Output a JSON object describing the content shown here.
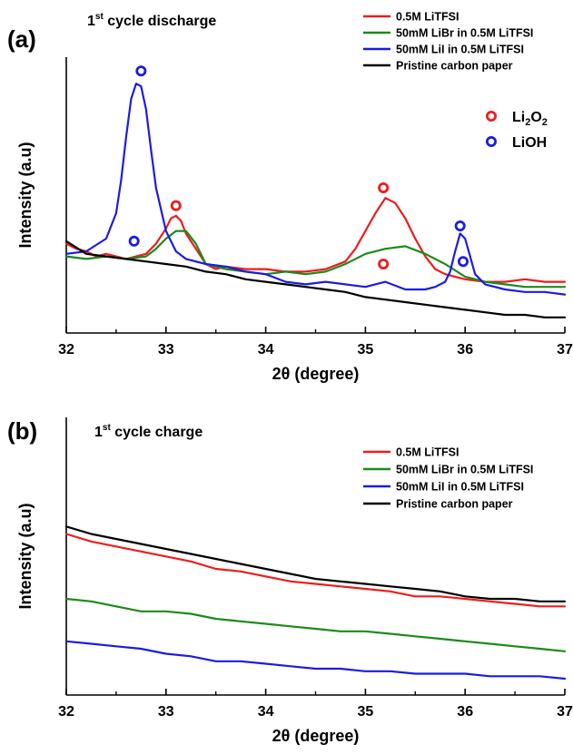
{
  "chart_data": [
    {
      "panel": "(a)",
      "title": "1st cycle discharge",
      "title_main": "1",
      "title_sup": "st",
      "title_rest": " cycle discharge",
      "type": "line",
      "xlabel": "2θ (degree)",
      "ylabel": "Intensity (a.u)",
      "xlim": [
        32,
        37
      ],
      "ylim": [
        0,
        100
      ],
      "xticks": [
        "32",
        "33",
        "34",
        "35",
        "36",
        "37"
      ],
      "legend_position": "top-right",
      "series": [
        {
          "name": "0.5M LiTFSI",
          "color": "#ee1c1c",
          "x": [
            32.0,
            32.1,
            32.2,
            32.3,
            32.4,
            32.5,
            32.6,
            32.7,
            32.8,
            32.9,
            33.0,
            33.05,
            33.1,
            33.15,
            33.2,
            33.3,
            33.4,
            33.5,
            33.6,
            33.8,
            34.0,
            34.2,
            34.4,
            34.6,
            34.8,
            34.9,
            35.0,
            35.1,
            35.2,
            35.3,
            35.4,
            35.5,
            35.6,
            35.7,
            35.8,
            35.9,
            36.0,
            36.2,
            36.4,
            36.6,
            36.8,
            37.0
          ],
          "values": [
            33,
            31,
            30,
            28,
            29,
            28,
            27,
            28,
            29,
            33,
            39,
            43,
            44,
            42,
            37,
            31,
            25,
            23,
            24,
            23,
            23,
            22,
            22,
            23,
            26,
            31,
            38,
            45,
            51,
            49,
            43,
            35,
            28,
            23,
            21,
            20,
            19,
            18,
            18,
            19,
            18,
            18
          ]
        },
        {
          "name": "50mM LiBr in 0.5M LiTFSI",
          "color": "#1c8a1c",
          "x": [
            32.0,
            32.2,
            32.4,
            32.6,
            32.8,
            32.9,
            33.0,
            33.1,
            33.2,
            33.3,
            33.4,
            33.6,
            33.8,
            34.0,
            34.2,
            34.4,
            34.6,
            34.8,
            35.0,
            35.2,
            35.4,
            35.6,
            35.8,
            36.0,
            36.2,
            36.4,
            36.6,
            36.8,
            37.0
          ],
          "values": [
            28,
            27,
            28,
            27,
            28,
            31,
            35,
            38,
            38,
            33,
            25,
            23,
            22,
            21,
            22,
            21,
            22,
            25,
            29,
            31,
            32,
            29,
            25,
            20,
            18,
            17,
            16,
            16,
            16
          ]
        },
        {
          "name": "50mM LiI in 0.5M LiTFSI",
          "color": "#1c1ce0",
          "x": [
            32.0,
            32.2,
            32.4,
            32.5,
            32.55,
            32.6,
            32.65,
            32.7,
            32.75,
            32.8,
            32.85,
            32.9,
            33.0,
            33.1,
            33.2,
            33.4,
            33.6,
            33.8,
            34.0,
            34.2,
            34.4,
            34.6,
            34.8,
            35.0,
            35.2,
            35.4,
            35.6,
            35.7,
            35.8,
            35.85,
            35.9,
            35.95,
            36.0,
            36.05,
            36.1,
            36.2,
            36.4,
            36.6,
            36.8,
            37.0
          ],
          "values": [
            29,
            30,
            35,
            45,
            58,
            75,
            90,
            96,
            95,
            86,
            70,
            55,
            38,
            30,
            27,
            25,
            24,
            22,
            21,
            18,
            17,
            18,
            17,
            16,
            18,
            15,
            15,
            16,
            18,
            22,
            30,
            37,
            35,
            28,
            21,
            17,
            15,
            14,
            14,
            13
          ]
        },
        {
          "name": "Pristine carbon paper",
          "color": "#000000",
          "x": [
            32.0,
            32.2,
            32.4,
            32.6,
            32.8,
            33.0,
            33.2,
            33.4,
            33.6,
            33.8,
            34.0,
            34.2,
            34.4,
            34.6,
            34.8,
            35.0,
            35.2,
            35.4,
            35.6,
            35.8,
            36.0,
            36.2,
            36.4,
            36.6,
            36.8,
            37.0
          ],
          "values": [
            34,
            29,
            28,
            27,
            26,
            25,
            24,
            22,
            21,
            19,
            18,
            17,
            16,
            15,
            14,
            12,
            11,
            10,
            9,
            8,
            7,
            6,
            5,
            5,
            4,
            4
          ]
        }
      ],
      "annotations": {
        "marker_legend": [
          {
            "label_main": "Li",
            "label_sub1": "2",
            "label_mid": "O",
            "label_sub2": "2",
            "color": "#ee1c1c"
          },
          {
            "label_main": "LiOH",
            "color": "#1c1ce0"
          }
        ],
        "markers": [
          {
            "x": 32.75,
            "y": 101,
            "color": "#1c1ce0"
          },
          {
            "x": 32.68,
            "y": 34,
            "color": "#1c1ce0"
          },
          {
            "x": 33.1,
            "y": 48,
            "color": "#ee1c1c"
          },
          {
            "x": 35.18,
            "y": 55,
            "color": "#ee1c1c"
          },
          {
            "x": 35.18,
            "y": 25,
            "color": "#ee1c1c"
          },
          {
            "x": 35.95,
            "y": 40,
            "color": "#1c1ce0"
          },
          {
            "x": 35.98,
            "y": 26,
            "color": "#1c1ce0"
          }
        ]
      }
    },
    {
      "panel": "(b)",
      "title": "1st cycle charge",
      "title_main": "1",
      "title_sup": "st",
      "title_rest": " cycle charge",
      "type": "line",
      "xlabel": "2θ (degree)",
      "ylabel": "Intensity (a.u)",
      "xlim": [
        32,
        37
      ],
      "ylim": [
        0,
        100
      ],
      "xticks": [
        "32",
        "33",
        "34",
        "35",
        "36",
        "37"
      ],
      "legend_position": "right",
      "series": [
        {
          "name": "0.5M LiTFSI",
          "color": "#ee1c1c",
          "x": [
            32.0,
            32.25,
            32.5,
            32.75,
            33.0,
            33.25,
            33.5,
            33.75,
            34.0,
            34.25,
            34.5,
            34.75,
            35.0,
            35.25,
            35.5,
            35.75,
            36.0,
            36.25,
            36.5,
            36.75,
            37.0
          ],
          "values": [
            58,
            55,
            53,
            51,
            49,
            47,
            44,
            43,
            41,
            39,
            38,
            37,
            36,
            35,
            33,
            33,
            32,
            31,
            30,
            29,
            29
          ]
        },
        {
          "name": "50mM LiBr in 0.5M LiTFSI",
          "color": "#1c8a1c",
          "x": [
            32.0,
            32.25,
            32.5,
            32.75,
            33.0,
            33.25,
            33.5,
            33.75,
            34.0,
            34.25,
            34.5,
            34.75,
            35.0,
            35.25,
            35.5,
            35.75,
            36.0,
            36.25,
            36.5,
            36.75,
            37.0
          ],
          "values": [
            32,
            31,
            29,
            27,
            27,
            26,
            24,
            23,
            22,
            21,
            20,
            19,
            19,
            18,
            17,
            16,
            15,
            14,
            13,
            12,
            11
          ]
        },
        {
          "name": "50mM LiI in 0.5M LiTFSI",
          "color": "#1c1ce0",
          "x": [
            32.0,
            32.25,
            32.5,
            32.75,
            33.0,
            33.25,
            33.5,
            33.75,
            34.0,
            34.25,
            34.5,
            34.75,
            35.0,
            35.25,
            35.5,
            35.75,
            36.0,
            36.25,
            36.5,
            36.75,
            37.0
          ],
          "values": [
            15,
            14,
            13,
            12,
            10,
            9,
            7,
            7,
            6,
            5,
            4,
            4,
            3,
            3,
            2,
            2,
            2,
            1,
            1,
            1,
            0
          ]
        },
        {
          "name": "Pristine carbon paper",
          "color": "#000000",
          "x": [
            32.0,
            32.25,
            32.5,
            32.75,
            33.0,
            33.25,
            33.5,
            33.75,
            34.0,
            34.25,
            34.5,
            34.75,
            35.0,
            35.25,
            35.5,
            35.75,
            36.0,
            36.25,
            36.5,
            36.75,
            37.0
          ],
          "values": [
            61,
            58,
            56,
            54,
            52,
            50,
            48,
            46,
            44,
            42,
            40,
            39,
            38,
            37,
            36,
            35,
            33,
            32,
            32,
            31,
            31
          ]
        }
      ]
    }
  ]
}
